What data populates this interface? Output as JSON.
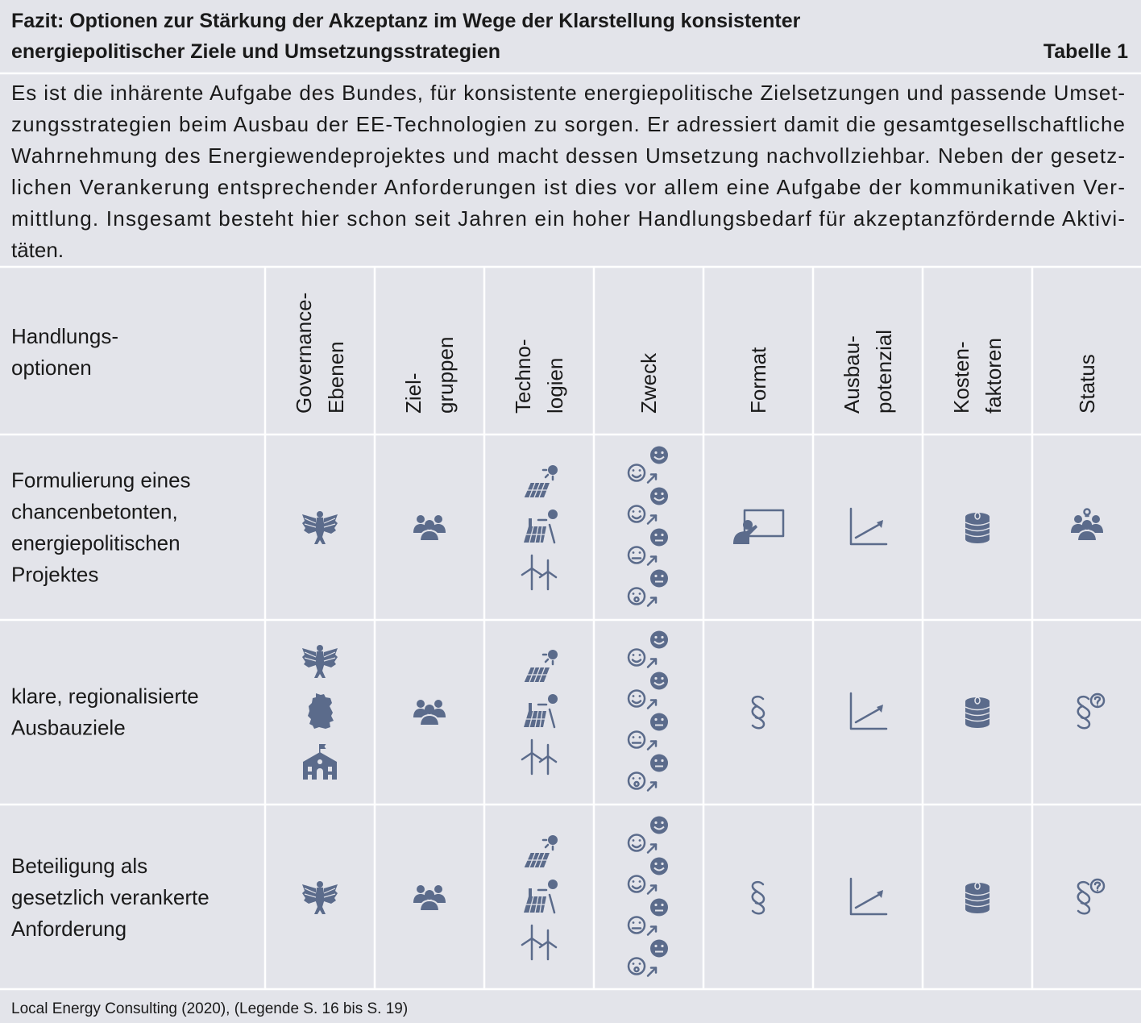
{
  "header": {
    "title_lines": [
      "Fazit: Optionen zur Stärkung der Akzeptanz im Wege der Klarstellung konsistenter",
      "energiepolitischer Ziele und Umsetzungsstrategien"
    ],
    "table_label": "Tabelle 1"
  },
  "intro": {
    "lines": [
      "Es ist die inhärente Aufgabe des Bundes, für konsistente energiepolitische Zielsetzungen und passende Umset-",
      "zungsstrategien beim Ausbau der EE-Technologien zu sorgen. Er adressiert damit die gesamtgesellschaftliche",
      "Wahrnehmung des Energiewendeprojektes und macht dessen Umsetzung nachvollziehbar. Neben der gesetz-",
      "lichen Verankerung entsprechender Anforderungen ist dies vor allem eine Aufgabe der kommunikativen Ver-",
      "mittlung. Insgesamt besteht hier schon seit Jahren ein hoher Handlungsbedarf für akzeptanzfördernde Aktivi-",
      "täten."
    ]
  },
  "table": {
    "columns": [
      [
        "Handlungs-",
        "optionen"
      ],
      [
        "Governance-",
        "Ebenen"
      ],
      [
        "Ziel-",
        "gruppen"
      ],
      [
        "Techno-",
        "logien"
      ],
      [
        "Zweck"
      ],
      [
        "Format"
      ],
      [
        "Ausbau-",
        "potenzial"
      ],
      [
        "Kosten-",
        "faktoren"
      ],
      [
        "Status"
      ]
    ],
    "rows": [
      [
        "Formulierung eines",
        "chancenbetonten,",
        "energiepolitischen",
        "Projektes"
      ],
      [
        "klare, regionalisierte",
        "Ausbauziele"
      ],
      [
        "Beteiligung als",
        "gesetzlich verankerte",
        "Anforderung"
      ]
    ]
  },
  "footer": "Local Energy Consulting (2020), (Legende S. 16 bis S. 19)"
}
